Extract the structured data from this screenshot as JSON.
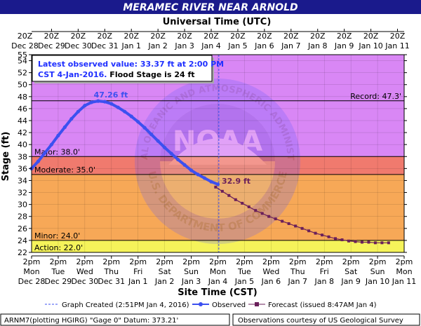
{
  "title": "MERAMEC RIVER NEAR ARNOLD",
  "top_axis_title": "Universal Time (UTC)",
  "bottom_axis_title": "Site Time (CST)",
  "y_axis_title": "Stage (ft)",
  "info_box": {
    "line1": "Latest observed value: 33.37 ft at 2:00 PM",
    "line2_blue": "CST 4-Jan-2016.",
    "line2_black": " Flood Stage is 24 ft"
  },
  "peak_label": "47.26 ft",
  "forecast_start_label": "32.9 ft",
  "legend": {
    "graph_created": "Graph Created (2:51PM Jan 4, 2016)",
    "observed": "Observed",
    "forecast": "Forecast (issued 8:47AM Jan 4)"
  },
  "footer": {
    "left": "ARNM7(plotting HGIRG) \"Gage 0\" Datum: 373.21'",
    "right": "Observations courtesy of US Geological Survey"
  },
  "watermark": {
    "top_text": "NATIONAL OCEANIC AND ATMOSPHERIC ADMINISTRATION",
    "bottom_text": "U.S. DEPARTMENT OF COMMERCE",
    "center_text": "NOAA"
  },
  "colors": {
    "title_bg": "#1a1a8c",
    "plot_border": "#000000",
    "observed": "#3c50f0",
    "forecast": "#6a1f5a",
    "record_zone": "#d987f5",
    "major_zone": "#e0a0f8",
    "moderate_zone": "#f07a6e",
    "minor_zone": "#f7a857",
    "action_zone": "#f5f35a",
    "normal_zone": "#f2f2f2"
  },
  "chart_data": {
    "type": "line",
    "ylim": [
      22,
      55
    ],
    "y_ticks": [
      22,
      24,
      26,
      28,
      30,
      32,
      34,
      36,
      38,
      40,
      42,
      44,
      46,
      48,
      50,
      52,
      54,
      55
    ],
    "x_top_tick_labels": [
      {
        "time": "20Z",
        "date": "Dec 28"
      },
      {
        "time": "20Z",
        "date": "Dec 29"
      },
      {
        "time": "20Z",
        "date": "Dec 30"
      },
      {
        "time": "20Z",
        "date": "Dec 31"
      },
      {
        "time": "20Z",
        "date": "Jan 1"
      },
      {
        "time": "20Z",
        "date": "Jan 2"
      },
      {
        "time": "20Z",
        "date": "Jan 3"
      },
      {
        "time": "20Z",
        "date": "Jan 4"
      },
      {
        "time": "20Z",
        "date": "Jan 5"
      },
      {
        "time": "20Z",
        "date": "Jan 6"
      },
      {
        "time": "20Z",
        "date": "Jan 7"
      },
      {
        "time": "20Z",
        "date": "Jan 8"
      },
      {
        "time": "20Z",
        "date": "Jan 9"
      },
      {
        "time": "20Z",
        "date": "Jan 10"
      },
      {
        "time": "20Z",
        "date": "Jan 11"
      }
    ],
    "x_bottom_tick_labels": [
      {
        "time": "2pm",
        "day": "Mon",
        "date": "Dec 28"
      },
      {
        "time": "2pm",
        "day": "Tue",
        "date": "Dec 29"
      },
      {
        "time": "2pm",
        "day": "Wed",
        "date": "Dec 30"
      },
      {
        "time": "2pm",
        "day": "Thu",
        "date": "Dec 31"
      },
      {
        "time": "2pm",
        "day": "Fri",
        "date": "Jan 1"
      },
      {
        "time": "2pm",
        "day": "Sat",
        "date": "Jan 2"
      },
      {
        "time": "2pm",
        "day": "Sun",
        "date": "Jan 3"
      },
      {
        "time": "2pm",
        "day": "Mon",
        "date": "Jan 4"
      },
      {
        "time": "2pm",
        "day": "Tue",
        "date": "Jan 5"
      },
      {
        "time": "2pm",
        "day": "Wed",
        "date": "Jan 6"
      },
      {
        "time": "2pm",
        "day": "Thu",
        "date": "Jan 7"
      },
      {
        "time": "2pm",
        "day": "Fri",
        "date": "Jan 8"
      },
      {
        "time": "2pm",
        "day": "Sat",
        "date": "Jan 9"
      },
      {
        "time": "2pm",
        "day": "Sun",
        "date": "Jan 10"
      },
      {
        "time": "2pm",
        "day": "Mon",
        "date": "Jan 11"
      }
    ],
    "flood_categories": [
      {
        "name": "Record",
        "label": "Record: 47.3'",
        "value": 47.3
      },
      {
        "name": "Major",
        "label": "Major: 38.0'",
        "value": 38.0
      },
      {
        "name": "Moderate",
        "label": "Moderate: 35.0'",
        "value": 35.0
      },
      {
        "name": "Minor",
        "label": "Minor: 24.0'",
        "value": 24.0
      },
      {
        "name": "Action",
        "label": "Action: 22.0'",
        "value": 22.0
      }
    ],
    "graph_created": "2016-01-04 14:51",
    "series": [
      {
        "name": "Observed",
        "points": [
          [
            "2015-12-28 14:00",
            36.0
          ],
          [
            "2015-12-28 20:00",
            37.2
          ],
          [
            "2015-12-29 02:00",
            38.6
          ],
          [
            "2015-12-29 08:00",
            40.0
          ],
          [
            "2015-12-29 14:00",
            41.5
          ],
          [
            "2015-12-29 20:00",
            42.9
          ],
          [
            "2015-12-30 02:00",
            44.3
          ],
          [
            "2015-12-30 08:00",
            45.5
          ],
          [
            "2015-12-30 14:00",
            46.5
          ],
          [
            "2015-12-30 20:00",
            47.05
          ],
          [
            "2015-12-31 02:00",
            47.26
          ],
          [
            "2015-12-31 08:00",
            47.15
          ],
          [
            "2015-12-31 14:00",
            46.8
          ],
          [
            "2015-12-31 20:00",
            46.2
          ],
          [
            "2016-01-01 02:00",
            45.5
          ],
          [
            "2016-01-01 08:00",
            44.7
          ],
          [
            "2016-01-01 14:00",
            43.8
          ],
          [
            "2016-01-01 20:00",
            42.8
          ],
          [
            "2016-01-02 02:00",
            41.7
          ],
          [
            "2016-01-02 08:00",
            40.6
          ],
          [
            "2016-01-02 14:00",
            39.5
          ],
          [
            "2016-01-02 20:00",
            38.5
          ],
          [
            "2016-01-03 02:00",
            37.5
          ],
          [
            "2016-01-03 08:00",
            36.6
          ],
          [
            "2016-01-03 14:00",
            35.7
          ],
          [
            "2016-01-03 20:00",
            35.0
          ],
          [
            "2016-01-04 02:00",
            34.4
          ],
          [
            "2016-01-04 08:00",
            33.8
          ],
          [
            "2016-01-04 14:00",
            33.37
          ]
        ]
      },
      {
        "name": "Forecast",
        "points": [
          [
            "2016-01-04 12:00",
            32.9
          ],
          [
            "2016-01-04 18:00",
            32.2
          ],
          [
            "2016-01-05 00:00",
            31.5
          ],
          [
            "2016-01-05 06:00",
            30.8
          ],
          [
            "2016-01-05 12:00",
            30.2
          ],
          [
            "2016-01-05 18:00",
            29.6
          ],
          [
            "2016-01-06 00:00",
            29.0
          ],
          [
            "2016-01-06 06:00",
            28.5
          ],
          [
            "2016-01-06 12:00",
            28.0
          ],
          [
            "2016-01-06 18:00",
            27.6
          ],
          [
            "2016-01-07 00:00",
            27.2
          ],
          [
            "2016-01-07 06:00",
            26.8
          ],
          [
            "2016-01-07 12:00",
            26.4
          ],
          [
            "2016-01-07 18:00",
            26.0
          ],
          [
            "2016-01-08 00:00",
            25.6
          ],
          [
            "2016-01-08 06:00",
            25.2
          ],
          [
            "2016-01-08 12:00",
            24.9
          ],
          [
            "2016-01-08 18:00",
            24.6
          ],
          [
            "2016-01-09 00:00",
            24.3
          ],
          [
            "2016-01-09 06:00",
            24.1
          ],
          [
            "2016-01-09 12:00",
            23.9
          ],
          [
            "2016-01-09 18:00",
            23.8
          ],
          [
            "2016-01-10 00:00",
            23.7
          ],
          [
            "2016-01-10 06:00",
            23.7
          ],
          [
            "2016-01-10 12:00",
            23.6
          ],
          [
            "2016-01-10 18:00",
            23.6
          ],
          [
            "2016-01-11 00:00",
            23.6
          ]
        ]
      }
    ]
  }
}
